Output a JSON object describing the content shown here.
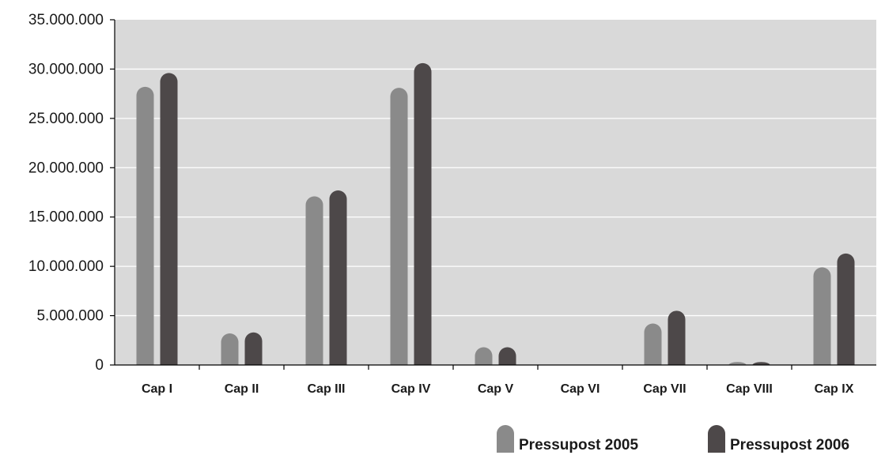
{
  "chart_data": {
    "type": "bar",
    "categories": [
      "Cap I",
      "Cap II",
      "Cap III",
      "Cap IV",
      "Cap V",
      "Cap VI",
      "Cap VII",
      "Cap VIII",
      "Cap IX"
    ],
    "series": [
      {
        "name": "Pressupost 2005",
        "color": "#8a8a8a",
        "values": [
          28200000,
          3200000,
          17100000,
          28100000,
          1800000,
          0,
          4200000,
          300000,
          9900000
        ]
      },
      {
        "name": "Pressupost 2006",
        "color": "#4d4849",
        "values": [
          29600000,
          3300000,
          17700000,
          30600000,
          1800000,
          0,
          5500000,
          300000,
          11300000
        ]
      }
    ],
    "yticks": [
      "0",
      "5.000.000",
      "10.000.000",
      "15.000.000",
      "20.000.000",
      "25.000.000",
      "30.000.000",
      "35.000.000"
    ],
    "ylim": [
      0,
      35000000
    ],
    "title": "",
    "xlabel": "",
    "ylabel": "",
    "grid": true,
    "legend": "bottom-right",
    "plot_background": "#d9d9d9",
    "gridline_color": "#ffffff"
  }
}
